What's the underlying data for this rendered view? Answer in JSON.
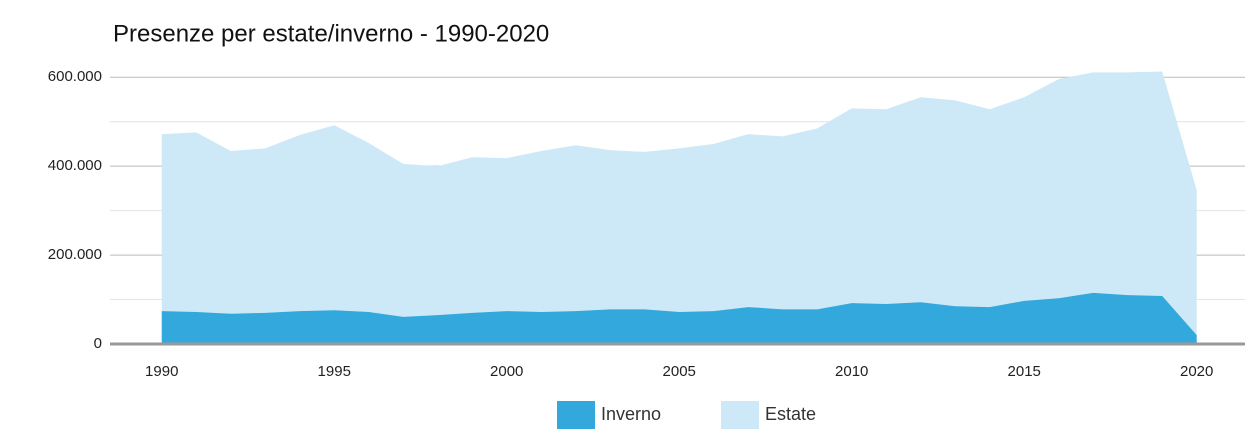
{
  "chart_data": {
    "type": "area",
    "title": "Presenze per estate/inverno - 1990-2020",
    "x": [
      1990,
      1991,
      1992,
      1993,
      1994,
      1995,
      1996,
      1997,
      1998,
      1999,
      2000,
      2001,
      2002,
      2003,
      2004,
      2005,
      2006,
      2007,
      2008,
      2009,
      2010,
      2011,
      2012,
      2013,
      2014,
      2015,
      2016,
      2017,
      2018,
      2019,
      2020
    ],
    "series": [
      {
        "name": "Inverno",
        "color": "#33a8dc",
        "values": [
          74000,
          72000,
          68000,
          70000,
          74000,
          76000,
          72000,
          61000,
          65000,
          70000,
          74000,
          72000,
          74000,
          78000,
          78000,
          72000,
          74000,
          83000,
          78000,
          78000,
          92000,
          90000,
          94000,
          85000,
          83000,
          97000,
          103000,
          115000,
          110000,
          108000,
          20000
        ]
      },
      {
        "name": "Estate",
        "color": "#cde9f7",
        "values": [
          472000,
          476000,
          434000,
          440000,
          470000,
          492000,
          452000,
          405000,
          400000,
          420000,
          418000,
          434000,
          447000,
          436000,
          432000,
          440000,
          450000,
          472000,
          467000,
          485000,
          530000,
          528000,
          555000,
          548000,
          528000,
          555000,
          596000,
          611000,
          611000,
          613000,
          346000
        ]
      }
    ],
    "xlim": [
      1988.5,
      2021.4
    ],
    "xticks": [
      1990,
      1995,
      2000,
      2005,
      2010,
      2015,
      2020
    ],
    "ylim": [
      0,
      650000
    ],
    "yticks": [
      0,
      {
        "value": 200000,
        "label": "200.000"
      },
      {
        "value": 400000,
        "label": "400.000"
      },
      {
        "value": 600000,
        "label": "600.000"
      }
    ],
    "minor_yticks": [
      100000,
      300000,
      500000
    ],
    "grid": true,
    "legend": "bottom"
  }
}
